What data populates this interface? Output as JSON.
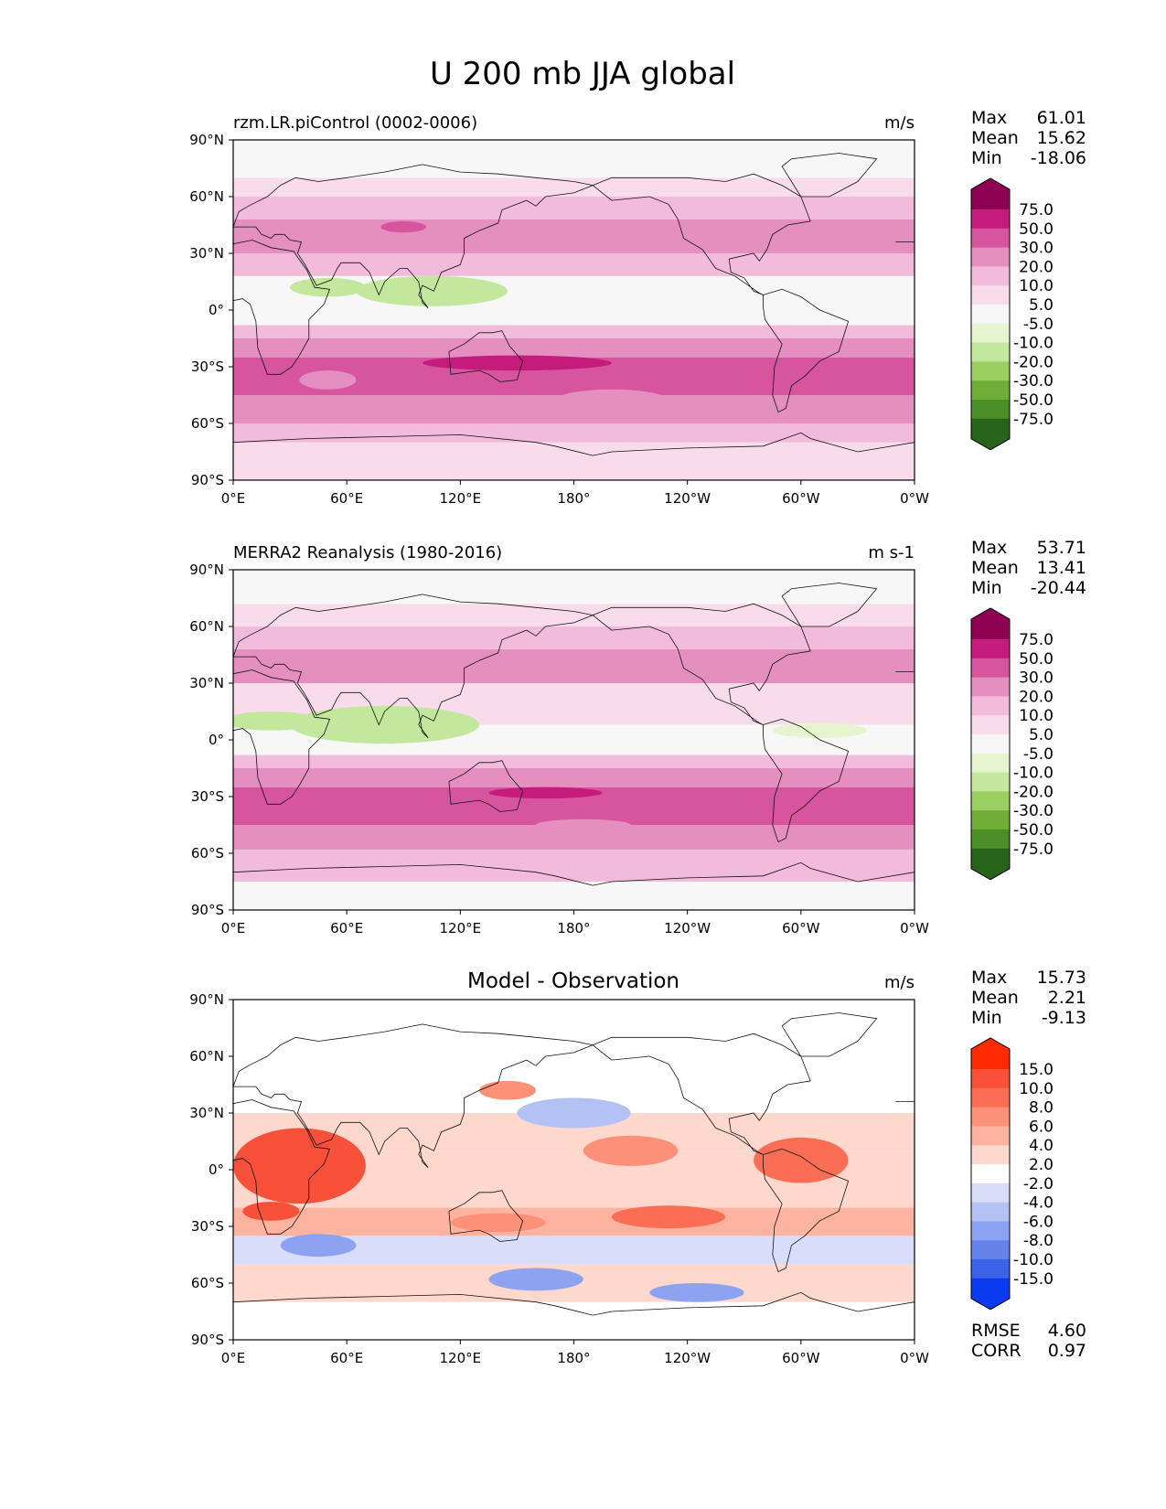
{
  "title": "U 200 mb JJA global",
  "panels": [
    {
      "id": "model",
      "left_title": "rzm.LR.piControl (0002-0006)",
      "center_title": "",
      "units": "m/s",
      "stats": [
        {
          "label": "Max",
          "value": "61.01"
        },
        {
          "label": "Mean",
          "value": "15.62"
        },
        {
          "label": "Min",
          "value": "-18.06"
        }
      ],
      "colorbar": {
        "labels": [
          "75.0",
          "50.0",
          "30.0",
          "20.0",
          "10.0",
          "5.0",
          "-5.0",
          "-10.0",
          "-20.0",
          "-30.0",
          "-50.0",
          "-75.0"
        ],
        "colors": [
          "#8e0152",
          "#c51b7d",
          "#d6559e",
          "#e48fc0",
          "#f2bbdb",
          "#f9dcec",
          "#f7f7f7",
          "#e6f5d0",
          "#c2e79d",
          "#9ccf62",
          "#6fac38",
          "#4d8f27",
          "#276419"
        ]
      },
      "extra_stats": []
    },
    {
      "id": "obs",
      "left_title": "MERRA2 Reanalysis (1980-2016)",
      "center_title": "",
      "units": "m s-1",
      "stats": [
        {
          "label": "Max",
          "value": "53.71"
        },
        {
          "label": "Mean",
          "value": "13.41"
        },
        {
          "label": "Min",
          "value": "-20.44"
        }
      ],
      "colorbar": {
        "labels": [
          "75.0",
          "50.0",
          "30.0",
          "20.0",
          "10.0",
          "5.0",
          "-5.0",
          "-10.0",
          "-20.0",
          "-30.0",
          "-50.0",
          "-75.0"
        ],
        "colors": [
          "#8e0152",
          "#c51b7d",
          "#d6559e",
          "#e48fc0",
          "#f2bbdb",
          "#f9dcec",
          "#f7f7f7",
          "#e6f5d0",
          "#c2e79d",
          "#9ccf62",
          "#6fac38",
          "#4d8f27",
          "#276419"
        ]
      },
      "extra_stats": []
    },
    {
      "id": "diff",
      "left_title": "",
      "center_title": "Model - Observation",
      "units": "m/s",
      "stats": [
        {
          "label": "Max",
          "value": "15.73"
        },
        {
          "label": "Mean",
          "value": "2.21"
        },
        {
          "label": "Min",
          "value": "-9.13"
        }
      ],
      "colorbar": {
        "labels": [
          "15.0",
          "10.0",
          "8.0",
          "6.0",
          "4.0",
          "2.0",
          "-2.0",
          "-4.0",
          "-6.0",
          "-8.0",
          "-10.0",
          "-15.0"
        ],
        "colors": [
          "#ff2a00",
          "#f9503a",
          "#fb6e55",
          "#fc9079",
          "#fdb3a0",
          "#fed8cd",
          "#ffffff",
          "#d8def9",
          "#b3c1f5",
          "#8da2f0",
          "#6683ec",
          "#3c62ea",
          "#0a3bf0"
        ]
      },
      "extra_stats": [
        {
          "label": "RMSE",
          "value": "4.60"
        },
        {
          "label": "CORR",
          "value": "0.97"
        }
      ]
    }
  ],
  "chart_data": {
    "type": "heatmap",
    "title": "U 200 mb JJA global",
    "variable": "U 200 mb",
    "season": "JJA",
    "region": "global",
    "x_ticks": [
      "0°E",
      "60°E",
      "120°E",
      "180°",
      "120°W",
      "60°W",
      "0°W"
    ],
    "y_ticks": [
      "90°N",
      "60°N",
      "30°N",
      "0°",
      "30°S",
      "60°S",
      "90°S"
    ],
    "xlim": [
      0,
      360
    ],
    "ylim": [
      -90,
      90
    ],
    "zonal_structure_note_free": true,
    "bands": {
      "model": [
        {
          "lat": [
            -90,
            -70
          ],
          "level": 5
        },
        {
          "lat": [
            -70,
            -60
          ],
          "level": 4
        },
        {
          "lat": [
            -60,
            -45
          ],
          "level": 3
        },
        {
          "lat": [
            -45,
            -25
          ],
          "level": 2
        },
        {
          "lat": [
            -25,
            -15
          ],
          "level": 3
        },
        {
          "lat": [
            -15,
            -8
          ],
          "level": 4
        },
        {
          "lat": [
            -8,
            3
          ],
          "level": 6
        },
        {
          "lat": [
            3,
            18
          ],
          "level": 6
        },
        {
          "lat": [
            18,
            30
          ],
          "level": 4
        },
        {
          "lat": [
            30,
            48
          ],
          "level": 3
        },
        {
          "lat": [
            48,
            60
          ],
          "level": 4
        },
        {
          "lat": [
            60,
            70
          ],
          "level": 5
        },
        {
          "lat": [
            70,
            90
          ],
          "level": 6
        }
      ],
      "obs": [
        {
          "lat": [
            -90,
            -75
          ],
          "level": 6
        },
        {
          "lat": [
            -75,
            -58
          ],
          "level": 4
        },
        {
          "lat": [
            -58,
            -45
          ],
          "level": 3
        },
        {
          "lat": [
            -45,
            -25
          ],
          "level": 2
        },
        {
          "lat": [
            -25,
            -15
          ],
          "level": 3
        },
        {
          "lat": [
            -15,
            -8
          ],
          "level": 4
        },
        {
          "lat": [
            -8,
            8
          ],
          "level": 6
        },
        {
          "lat": [
            8,
            30
          ],
          "level": 5
        },
        {
          "lat": [
            30,
            48
          ],
          "level": 3
        },
        {
          "lat": [
            48,
            60
          ],
          "level": 4
        },
        {
          "lat": [
            60,
            72
          ],
          "level": 5
        },
        {
          "lat": [
            72,
            90
          ],
          "level": 6
        }
      ],
      "diff": [
        {
          "lat": [
            -90,
            -70
          ],
          "level": 6
        },
        {
          "lat": [
            -70,
            -50
          ],
          "level": 5
        },
        {
          "lat": [
            -50,
            -35
          ],
          "level": 7
        },
        {
          "lat": [
            -35,
            -20
          ],
          "level": 4
        },
        {
          "lat": [
            -20,
            10
          ],
          "level": 5
        },
        {
          "lat": [
            10,
            30
          ],
          "level": 5
        },
        {
          "lat": [
            30,
            55
          ],
          "level": 6
        },
        {
          "lat": [
            55,
            90
          ],
          "level": 6
        }
      ]
    },
    "blobs": {
      "model": [
        {
          "lon": 150,
          "lat": -28,
          "rx": 50,
          "ry": 4,
          "level": 1
        },
        {
          "lon": 105,
          "lat": 10,
          "rx": 40,
          "ry": 8,
          "level": 8
        },
        {
          "lon": 50,
          "lat": 12,
          "rx": 20,
          "ry": 5,
          "level": 8
        },
        {
          "lon": 90,
          "lat": 44,
          "rx": 12,
          "ry": 3,
          "level": 2
        },
        {
          "lon": 50,
          "lat": -37,
          "rx": 15,
          "ry": 5,
          "level": 3
        },
        {
          "lon": 200,
          "lat": -48,
          "rx": 30,
          "ry": 6,
          "level": 3
        }
      ],
      "obs": [
        {
          "lon": 165,
          "lat": -28,
          "rx": 30,
          "ry": 3,
          "level": 1
        },
        {
          "lon": 80,
          "lat": 8,
          "rx": 50,
          "ry": 10,
          "level": 8
        },
        {
          "lon": 20,
          "lat": 10,
          "rx": 25,
          "ry": 5,
          "level": 8
        },
        {
          "lon": 310,
          "lat": 5,
          "rx": 25,
          "ry": 4,
          "level": 7
        },
        {
          "lon": 185,
          "lat": -45,
          "rx": 25,
          "ry": 3,
          "level": 3
        }
      ],
      "diff": [
        {
          "lon": 35,
          "lat": 2,
          "rx": 35,
          "ry": 20,
          "level": 1
        },
        {
          "lon": 20,
          "lat": -22,
          "rx": 15,
          "ry": 5,
          "level": 1
        },
        {
          "lon": 45,
          "lat": -40,
          "rx": 20,
          "ry": 6,
          "level": 9
        },
        {
          "lon": 230,
          "lat": -25,
          "rx": 30,
          "ry": 6,
          "level": 2
        },
        {
          "lon": 140,
          "lat": -28,
          "rx": 25,
          "ry": 5,
          "level": 3
        },
        {
          "lon": 300,
          "lat": 5,
          "rx": 25,
          "ry": 12,
          "level": 2
        },
        {
          "lon": 210,
          "lat": 10,
          "rx": 25,
          "ry": 8,
          "level": 3
        },
        {
          "lon": 160,
          "lat": -58,
          "rx": 25,
          "ry": 6,
          "level": 9
        },
        {
          "lon": 245,
          "lat": -65,
          "rx": 25,
          "ry": 5,
          "level": 9
        },
        {
          "lon": 180,
          "lat": 30,
          "rx": 30,
          "ry": 8,
          "level": 8
        },
        {
          "lon": 145,
          "lat": 42,
          "rx": 15,
          "ry": 5,
          "level": 3
        }
      ]
    }
  }
}
